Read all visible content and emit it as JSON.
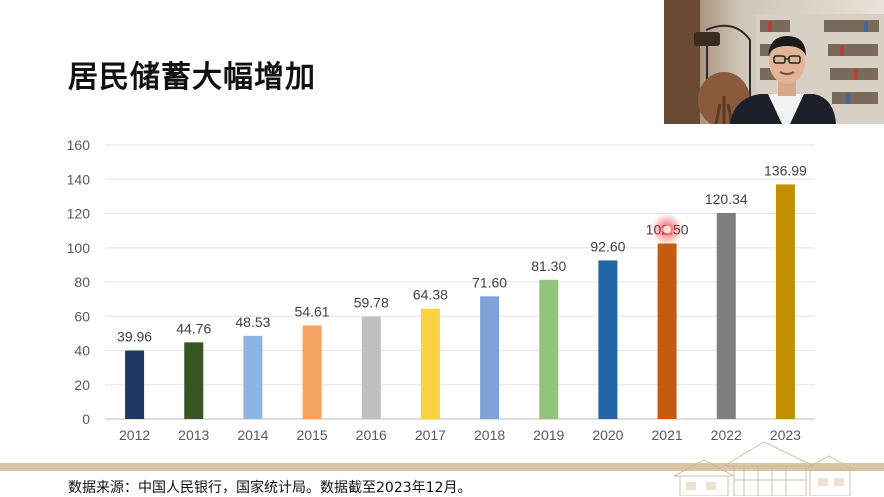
{
  "title": "居民储蓄大幅增加",
  "footer_note": "数据来源：中国人民银行，国家统计局。数据截至2023年12月。",
  "chart_data": {
    "type": "bar",
    "categories": [
      "2012",
      "2013",
      "2014",
      "2015",
      "2016",
      "2017",
      "2018",
      "2019",
      "2020",
      "2021",
      "2022",
      "2023"
    ],
    "values": [
      39.96,
      44.76,
      48.53,
      54.61,
      59.78,
      64.38,
      71.6,
      81.3,
      92.6,
      102.5,
      120.34,
      136.99
    ],
    "value_labels": [
      "39.96",
      "44.76",
      "48.53",
      "54.61",
      "59.78",
      "64.38",
      "71.60",
      "81.30",
      "92.60",
      "102.50",
      "120.34",
      "136.99"
    ],
    "colors": [
      "#1f3864",
      "#375623",
      "#8db4e2",
      "#f4a460",
      "#bfbfbf",
      "#ffd043",
      "#7ea2d8",
      "#93c47d",
      "#2366a8",
      "#c55a11",
      "#7f7f7f",
      "#bf9000"
    ],
    "y_ticks": [
      "0",
      "20",
      "40",
      "60",
      "80",
      "100",
      "120",
      "140",
      "160"
    ],
    "ylim": [
      0,
      160
    ],
    "grid": true,
    "xlabel": "",
    "ylabel": ""
  },
  "highlight": {
    "category": "2021",
    "color": "#ff3030"
  }
}
